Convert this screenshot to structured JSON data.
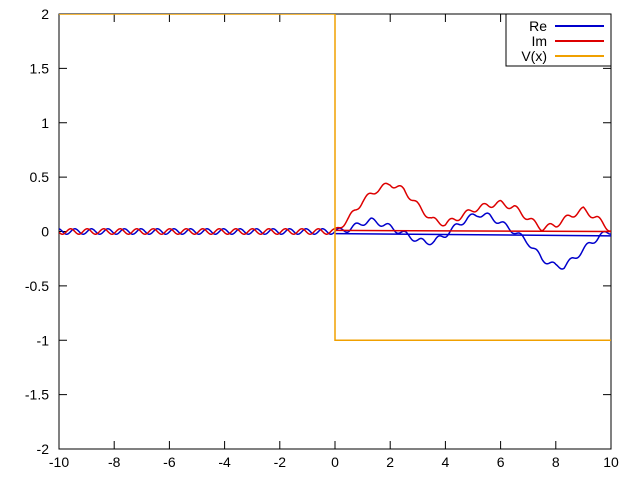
{
  "chart_data": {
    "type": "line",
    "title": "",
    "xlabel": "",
    "ylabel": "",
    "xlim": [
      -10,
      10
    ],
    "ylim": [
      -2,
      2
    ],
    "xticks": [
      -10,
      -8,
      -6,
      -4,
      -2,
      0,
      2,
      4,
      6,
      8,
      10
    ],
    "xtick_labels": [
      "-10",
      "-8",
      "-6",
      "-4",
      "-2",
      "0",
      "2",
      "4",
      "6",
      "8",
      "10"
    ],
    "yticks": [
      2,
      1.5,
      1,
      0.5,
      0,
      -0.5,
      -1,
      -1.5,
      -2
    ],
    "ytick_labels": [
      "2",
      "1.5",
      "1",
      "0.5",
      "0",
      "-0.5",
      "-1",
      "-1.5",
      "-2"
    ],
    "grid": false,
    "legend_position": "top-right",
    "series": [
      {
        "name": "Re",
        "color": "#0000cc",
        "x": [
          -10,
          -9,
          -8,
          -7,
          -6,
          -5,
          -4,
          -3,
          -2,
          -1,
          -0.2,
          0,
          0.5,
          1,
          1.3,
          1.6,
          2,
          2.5,
          3,
          3.3,
          3.6,
          4,
          4.4,
          4.8,
          5.2,
          5.6,
          6,
          6.5,
          7,
          7.5,
          8,
          8.3,
          8.7,
          9.2,
          9.6,
          10
        ],
        "y": [
          0,
          0,
          0,
          0,
          0,
          0,
          0,
          0,
          0,
          0,
          0,
          0,
          0.02,
          0.08,
          0.1,
          0.08,
          0.04,
          -0.02,
          -0.08,
          -0.1,
          -0.09,
          -0.03,
          0.05,
          0.12,
          0.16,
          0.14,
          0.08,
          0,
          -0.1,
          -0.25,
          -0.32,
          -0.32,
          -0.24,
          -0.12,
          -0.04,
          0
        ],
        "oscillation_amplitude": 0.025,
        "baseline": {
          "x": [
            0,
            10
          ],
          "y": [
            -0.02,
            -0.04
          ]
        }
      },
      {
        "name": "Im",
        "color": "#dd0000",
        "x": [
          -10,
          -9,
          -8,
          -7,
          -6,
          -5,
          -4,
          -3,
          -2,
          -1,
          -0.2,
          0,
          0.5,
          1,
          1.5,
          2,
          2.5,
          3,
          3.5,
          4,
          4.5,
          5,
          5.5,
          6,
          6.5,
          7,
          7.5,
          8,
          8.5,
          9,
          9.5,
          10
        ],
        "y": [
          0,
          0,
          0,
          0,
          0,
          0,
          0,
          0,
          0,
          0,
          0,
          0,
          0.12,
          0.28,
          0.38,
          0.44,
          0.38,
          0.24,
          0.11,
          0.07,
          0.13,
          0.2,
          0.24,
          0.26,
          0.22,
          0.12,
          0.03,
          0.06,
          0.14,
          0.2,
          0.12,
          0.01
        ],
        "oscillation_amplitude": 0.025,
        "baseline": {
          "x": [
            0,
            10
          ],
          "y": [
            0.01,
            0.0
          ]
        }
      },
      {
        "name": "V(x)",
        "color": "#f0a000",
        "x": [
          -10,
          0,
          0,
          10
        ],
        "y": [
          2,
          2,
          -1,
          -1
        ]
      }
    ]
  }
}
